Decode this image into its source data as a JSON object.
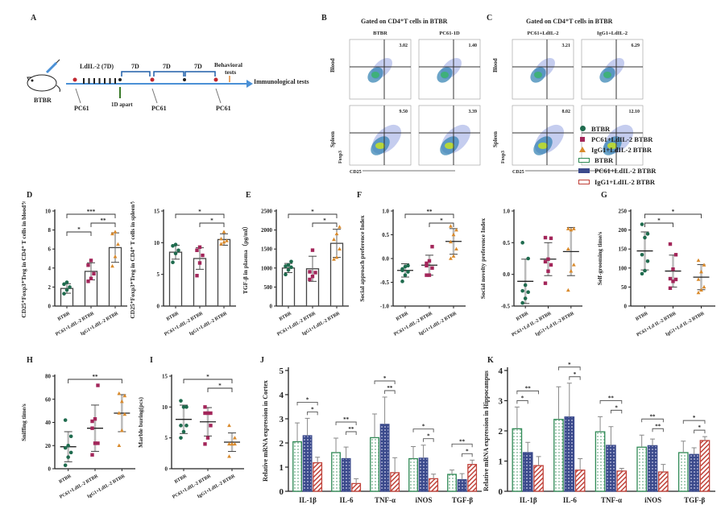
{
  "colors": {
    "btbr": "#1f6b4e",
    "pc61": "#a3265a",
    "igg1": "#d98a2c",
    "bar_btbr": "#2f8a55",
    "bar_pc61": "#3b4a8c",
    "bar_igg1": "#c0423a",
    "timeline": "#4a90d6",
    "bracket": "#1f5fa8"
  },
  "panel_labels": {
    "A": "A",
    "B": "B",
    "C": "C",
    "D": "D",
    "E": "E",
    "F": "F",
    "G": "G",
    "H": "H",
    "I": "I",
    "J": "J",
    "K": "K"
  },
  "timeline": {
    "mouse_label": "BTBR",
    "ldil2_label": "LdIL-2 (7D)",
    "intervals": [
      "7D",
      "7D",
      "7D"
    ],
    "behavioral_label_1": "Behavioral",
    "behavioral_label_2": "tests",
    "end_label": "Immunological tests",
    "one_day_label": "1D apart",
    "injection_labels": [
      "PC61",
      "PC61",
      "PC61"
    ]
  },
  "flow": {
    "B_title": "Gated on CD4⁺T cells in BTBR",
    "C_title": "Gated on CD4⁺T cells in BTBR",
    "row_labels": [
      "Blood",
      "Spleen"
    ],
    "y_axis": "Foxp3",
    "x_axis": "CD25",
    "B_columns": [
      "BTBR",
      "PC61-1D"
    ],
    "C_columns": [
      "PC61+LdIL-2",
      "IgG1+LdIL-2"
    ],
    "B_values": {
      "blood": [
        "3.02",
        "1.40"
      ],
      "spleen": [
        "9.50",
        "3.39"
      ]
    },
    "C_values": {
      "blood": [
        "3.21",
        "6.29"
      ],
      "spleen": [
        "8.02",
        "12.10"
      ]
    }
  },
  "legend": {
    "items": [
      {
        "label": "BTBR",
        "marker": "circle"
      },
      {
        "label": "PC61+LdIL-2 BTBR",
        "marker": "square"
      },
      {
        "label": "IgG1+LdIL-2 BTBR",
        "marker": "triangle"
      },
      {
        "label": "BTBR",
        "marker": "bar-dotted"
      },
      {
        "label": "PC61+LdIL-2 BTBR",
        "marker": "bar-checkered"
      },
      {
        "label": "IgG1+LdIL-2 BTBR",
        "marker": "bar-hatched"
      }
    ]
  },
  "chart_data": [
    {
      "id": "D1",
      "type": "bar",
      "panel": "D",
      "ylabel": "CD25⁺Foxp3⁺Treg in CD4⁺ T cells in blood%",
      "ylim": [
        0,
        10
      ],
      "yticks": [
        0,
        2,
        4,
        6,
        8,
        10
      ],
      "categories": [
        "BTBR",
        "PC61+LdIL-2 BTBR",
        "IgG1+LdIL-2 BTBR"
      ],
      "means": [
        1.85,
        3.65,
        6.15
      ],
      "sd": [
        0.5,
        0.9,
        1.55
      ],
      "points": [
        [
          1.3,
          1.7,
          2.0,
          2.3,
          2.5
        ],
        [
          2.6,
          2.9,
          3.4,
          4.3,
          4.8
        ],
        [
          4.2,
          5.2,
          6.5,
          7.6,
          7.8
        ]
      ],
      "sig": [
        {
          "a": 0,
          "b": 1,
          "label": "*"
        },
        {
          "a": 1,
          "b": 2,
          "label": "**"
        },
        {
          "a": 0,
          "b": 2,
          "label": "***"
        }
      ]
    },
    {
      "id": "D2",
      "type": "bar",
      "panel": "D",
      "ylabel": "CD25⁺Foxp3⁺Treg in CD4⁺ T cells in spleen%",
      "ylim": [
        0,
        15
      ],
      "yticks": [
        0,
        5,
        10,
        15
      ],
      "categories": [
        "BTBR",
        "PC61+LdIL-2 BTBR",
        "IgG1+LdIL-2 BTBR"
      ],
      "means": [
        8.5,
        7.5,
        10.5
      ],
      "sd": [
        1.1,
        1.7,
        0.9
      ],
      "points": [
        [
          6.9,
          8.3,
          8.8,
          9.5,
          9.7
        ],
        [
          4.8,
          6.8,
          8.0,
          8.8,
          9.3
        ],
        [
          9.8,
          10.1,
          10.3,
          10.6,
          11.7
        ]
      ],
      "sig": [
        {
          "a": 1,
          "b": 2,
          "label": "*"
        },
        {
          "a": 0,
          "b": 2,
          "label": "*"
        }
      ]
    },
    {
      "id": "E",
      "type": "bar",
      "panel": "E",
      "ylabel": "TGF-β in plasma（pg/ml）",
      "ylim": [
        0,
        2500
      ],
      "yticks": [
        0,
        500,
        1000,
        1500,
        2000,
        2500
      ],
      "categories": [
        "BTBR",
        "PC61+LdIL-2 BTBR",
        "IgG1+LdIL-2 BTBR"
      ],
      "means": [
        1000,
        980,
        1650
      ],
      "sd": [
        120,
        330,
        370
      ],
      "points": [
        [
          830,
          950,
          1020,
          1050,
          1080,
          1170
        ],
        [
          700,
          780,
          880,
          900,
          1470
        ],
        [
          1230,
          1280,
          1500,
          1750,
          1900,
          2080
        ]
      ],
      "sig": [
        {
          "a": 1,
          "b": 2,
          "label": "*"
        },
        {
          "a": 0,
          "b": 2,
          "label": "*"
        }
      ]
    },
    {
      "id": "F1",
      "type": "scatter",
      "panel": "F",
      "ylabel": "Social approach preference Index",
      "ylim": [
        -1,
        1
      ],
      "yticks": [
        -1.0,
        -0.5,
        0.0,
        0.5,
        1.0
      ],
      "categories": [
        "BTBR",
        "PC61+LdIL-2 BTBR",
        "IgG1+LdIL-2 BTBR"
      ],
      "means": [
        -0.25,
        -0.14,
        0.36
      ],
      "sd": [
        0.14,
        0.21,
        0.27
      ],
      "points": [
        [
          -0.48,
          -0.35,
          -0.28,
          -0.22,
          -0.17,
          -0.15,
          -0.25
        ],
        [
          -0.35,
          -0.35,
          -0.2,
          -0.1,
          -0.05,
          0.25,
          -0.15
        ],
        [
          0.0,
          0.05,
          0.2,
          0.35,
          0.5,
          0.6,
          0.68
        ]
      ],
      "sig": [
        {
          "a": 1,
          "b": 2,
          "label": "*"
        },
        {
          "a": 0,
          "b": 2,
          "label": "**"
        }
      ]
    },
    {
      "id": "F2",
      "type": "scatter",
      "panel": "F",
      "ylabel": "Social novelty preference Index",
      "ylim": [
        -0.5,
        1
      ],
      "yticks": [
        -0.5,
        0.0,
        0.5,
        1.0
      ],
      "categories": [
        "BTBR",
        "PC61+Ld IL-2 BTBR",
        "IgG1+Ld IL-2 BTBR"
      ],
      "means": [
        -0.11,
        0.24,
        0.36
      ],
      "sd": [
        0.35,
        0.26,
        0.38
      ],
      "points": [
        [
          -0.45,
          -0.38,
          -0.28,
          -0.26,
          -0.17,
          0.25,
          0.5
        ],
        [
          -0.14,
          0.05,
          0.15,
          0.2,
          0.24,
          0.57,
          0.58
        ],
        [
          -0.25,
          0.05,
          0.15,
          0.4,
          0.7,
          0.72,
          0.72
        ]
      ],
      "sig": []
    },
    {
      "id": "G",
      "type": "scatter",
      "panel": "G",
      "ylabel": "Self-grooming time/s",
      "ylim": [
        0,
        250
      ],
      "yticks": [
        0,
        50,
        100,
        150,
        200,
        250
      ],
      "categories": [
        "BTBR",
        "PC61+Ld IL-2 BTBR",
        "IgG1+Ld IL-2 BTBR"
      ],
      "means": [
        145,
        92,
        76
      ],
      "sd": [
        50,
        42,
        33
      ],
      "points": [
        [
          85,
          93,
          118,
          135,
          180,
          190,
          215
        ],
        [
          47,
          65,
          70,
          72,
          97,
          135,
          163
        ],
        [
          35,
          42,
          50,
          70,
          90,
          108,
          120
        ]
      ],
      "sig": [
        {
          "a": 0,
          "b": 1,
          "label": "*"
        },
        {
          "a": 0,
          "b": 2,
          "label": "*"
        }
      ]
    },
    {
      "id": "H",
      "type": "scatter",
      "panel": "H",
      "ylabel": "Sniffing time/s",
      "ylim": [
        0,
        80
      ],
      "yticks": [
        0,
        20,
        40,
        60,
        80
      ],
      "categories": [
        "BTBR",
        "PC61+LdIL-2 BTBR",
        "IgG1+LdIL-2 BTBR"
      ],
      "means": [
        19,
        35,
        48
      ],
      "sd": [
        13,
        20,
        16
      ],
      "points": [
        [
          3,
          10,
          14,
          18,
          20,
          28,
          42
        ],
        [
          12,
          22,
          22,
          41,
          43,
          72,
          35
        ],
        [
          20,
          33,
          47,
          48,
          58,
          63,
          65
        ]
      ],
      "sig": [
        {
          "a": 0,
          "b": 2,
          "label": "**"
        }
      ]
    },
    {
      "id": "I",
      "type": "scatter",
      "panel": "I",
      "ylabel": "Marble buring(pcs)",
      "ylim": [
        0,
        15
      ],
      "yticks": [
        0,
        5,
        10,
        15
      ],
      "categories": [
        "BTBR",
        "PC61+LdIL-2 BTBR",
        "IgG1+LdIL-2 BTBR"
      ],
      "means": [
        8.0,
        7.6,
        4.3
      ],
      "sd": [
        2.3,
        2.3,
        1.5
      ],
      "points": [
        [
          5,
          6,
          7,
          7,
          10,
          10,
          11
        ],
        [
          4,
          5,
          7,
          9,
          9,
          9,
          10
        ],
        [
          2,
          4,
          4,
          4,
          4,
          5,
          7
        ]
      ],
      "sig": [
        {
          "a": 1,
          "b": 2,
          "label": "*"
        },
        {
          "a": 0,
          "b": 2,
          "label": "*"
        }
      ]
    },
    {
      "id": "J",
      "type": "bar",
      "panel": "J",
      "ylabel": "Relative mRNA expression in Cortex",
      "ylim": [
        0,
        5
      ],
      "yticks": [
        0,
        1,
        2,
        3,
        4,
        5
      ],
      "categories": [
        "IL-1β",
        "IL-6",
        "TNF-α",
        "iNOS",
        "TGF-β"
      ],
      "series": [
        {
          "name": "BTBR",
          "values": [
            2.05,
            1.6,
            2.22,
            1.35,
            0.7
          ],
          "err": [
            0.78,
            0.6,
            0.98,
            0.5,
            0.18
          ]
        },
        {
          "name": "PC61+LdIL-2 BTBR",
          "values": [
            2.3,
            1.35,
            2.77,
            1.37,
            0.48
          ],
          "err": [
            0.72,
            0.48,
            1.13,
            0.54,
            0.25
          ]
        },
        {
          "name": "IgG1+LdIL-2 BTBR",
          "values": [
            1.18,
            0.32,
            0.77,
            0.52,
            1.11
          ],
          "err": [
            0.23,
            0.2,
            0.62,
            0.19,
            0.18
          ]
        }
      ],
      "sig": [
        [
          {
            "a": 1,
            "b": 2,
            "label": "*"
          },
          {
            "a": 0,
            "b": 2,
            "label": "*"
          }
        ],
        [
          {
            "a": 1,
            "b": 2,
            "label": "**"
          },
          {
            "a": 0,
            "b": 2,
            "label": "**"
          }
        ],
        [
          {
            "a": 1,
            "b": 2,
            "label": "**"
          },
          {
            "a": 0,
            "b": 2,
            "label": "*"
          }
        ],
        [
          {
            "a": 1,
            "b": 2,
            "label": "*"
          },
          {
            "a": 0,
            "b": 2,
            "label": "*"
          }
        ],
        [
          {
            "a": 1,
            "b": 2,
            "label": "*"
          },
          {
            "a": 0,
            "b": 2,
            "label": "**"
          }
        ]
      ]
    },
    {
      "id": "K",
      "type": "bar",
      "panel": "K",
      "ylabel": "Relative mRNA expression in Hippocampus",
      "ylim": [
        0,
        4
      ],
      "yticks": [
        0,
        1,
        2,
        3,
        4
      ],
      "categories": [
        "IL-1β",
        "IL-6",
        "TNF-α",
        "iNOS",
        "TGF-β"
      ],
      "series": [
        {
          "name": "BTBR",
          "values": [
            2.07,
            2.38,
            1.97,
            1.46,
            1.28
          ],
          "err": [
            0.72,
            1.08,
            0.5,
            0.4,
            0.38
          ]
        },
        {
          "name": "PC61+LdIL-2 BTBR",
          "values": [
            1.28,
            2.46,
            1.52,
            1.51,
            1.22
          ],
          "err": [
            0.34,
            1.12,
            0.62,
            0.22,
            0.22
          ]
        },
        {
          "name": "IgG1+LdIL-2 BTBR",
          "values": [
            0.85,
            0.7,
            0.67,
            0.64,
            1.68
          ],
          "err": [
            0.3,
            0.38,
            0.09,
            0.25,
            0.13
          ]
        }
      ],
      "sig": [
        [
          {
            "a": 0,
            "b": 1,
            "label": "*"
          },
          {
            "a": 0,
            "b": 2,
            "label": "**"
          }
        ],
        [
          {
            "a": 1,
            "b": 2,
            "label": "*"
          },
          {
            "a": 0,
            "b": 2,
            "label": "*"
          }
        ],
        [
          {
            "a": 1,
            "b": 2,
            "label": "*"
          },
          {
            "a": 0,
            "b": 2,
            "label": "**"
          }
        ],
        [
          {
            "a": 1,
            "b": 2,
            "label": "**"
          },
          {
            "a": 0,
            "b": 2,
            "label": "**"
          }
        ],
        [
          {
            "a": 1,
            "b": 2,
            "label": "*"
          },
          {
            "a": 0,
            "b": 2,
            "label": "*"
          }
        ]
      ]
    }
  ]
}
